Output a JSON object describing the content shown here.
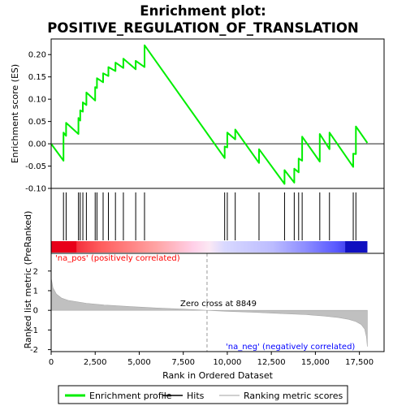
{
  "chart_data": {
    "type": "line",
    "title": "Enrichment plot:\nPOSITIVE_REGULATION_OF_TRANSLATION",
    "enrichment": {
      "ylabel": "Enrichment score (ES)",
      "ylim": [
        -0.1,
        0.235
      ],
      "yticks": [
        -0.1,
        -0.05,
        0.0,
        0.05,
        0.1,
        0.15,
        0.2
      ],
      "ytick_labels": [
        "-0.10",
        "-0.05",
        "0.00",
        "0.05",
        "0.10",
        "0.15",
        "0.20"
      ],
      "series": [
        {
          "name": "Enrichment profile",
          "color": "#00ee00",
          "x": [
            0,
            700,
            700,
            850,
            850,
            1550,
            1550,
            1650,
            1650,
            1800,
            1800,
            2000,
            2000,
            2500,
            2500,
            2600,
            2600,
            2950,
            2950,
            3250,
            3250,
            3650,
            3650,
            4100,
            4100,
            4800,
            4800,
            5300,
            5300,
            9850,
            9850,
            10000,
            10000,
            10450,
            10450,
            11800,
            11800,
            13250,
            13250,
            13800,
            13800,
            14050,
            14050,
            14250,
            14250,
            15250,
            15250,
            15800,
            15800,
            17150,
            17150,
            17300,
            17300,
            17950
          ],
          "y": [
            0.0,
            -0.038,
            0.025,
            0.018,
            0.047,
            0.022,
            0.058,
            0.052,
            0.075,
            0.072,
            0.093,
            0.087,
            0.115,
            0.097,
            0.127,
            0.125,
            0.147,
            0.138,
            0.158,
            0.152,
            0.172,
            0.163,
            0.182,
            0.17,
            0.191,
            0.167,
            0.186,
            0.172,
            0.221,
            -0.032,
            -0.006,
            -0.008,
            0.025,
            0.01,
            0.032,
            -0.043,
            -0.012,
            -0.09,
            -0.059,
            -0.087,
            -0.056,
            -0.064,
            -0.033,
            -0.038,
            0.016,
            -0.04,
            0.022,
            -0.012,
            0.025,
            -0.052,
            -0.022,
            -0.023,
            0.039,
            0.002
          ]
        }
      ]
    },
    "hits": [
      700,
      850,
      1550,
      1650,
      1800,
      2000,
      2500,
      2600,
      2950,
      3250,
      3650,
      4100,
      4800,
      5300,
      9850,
      10000,
      10450,
      11800,
      13250,
      13800,
      14050,
      14250,
      15250,
      15800,
      17150,
      17300
    ],
    "ranked_metric": {
      "ylabel": "Ranked list metric (PreRanked)",
      "ylim": [
        -2.1,
        2.9
      ],
      "yticks": [
        -2,
        -1,
        0,
        1,
        2
      ],
      "ytick_labels": [
        "-2",
        "-1",
        "0",
        "1",
        "2"
      ],
      "x": [
        0,
        100,
        300,
        600,
        1000,
        2000,
        3000,
        4500,
        6000,
        7500,
        8849,
        10000,
        11500,
        13000,
        14500,
        15500,
        16300,
        16900,
        17300,
        17600,
        17800,
        17900,
        17950
      ],
      "y": [
        1.65,
        1.15,
        0.82,
        0.62,
        0.5,
        0.36,
        0.27,
        0.19,
        0.12,
        0.06,
        0.0,
        -0.05,
        -0.1,
        -0.16,
        -0.22,
        -0.29,
        -0.37,
        -0.46,
        -0.57,
        -0.72,
        -0.95,
        -1.35,
        -1.85
      ],
      "color": "#c0c0c0"
    },
    "xaxis": {
      "label": "Rank in Ordered Dataset",
      "xlim": [
        0,
        18900
      ],
      "xticks": [
        0,
        2500,
        5000,
        7500,
        10000,
        12500,
        15000,
        17500
      ],
      "xtick_labels": [
        "0",
        "2,500",
        "5,000",
        "7,500",
        "10,000",
        "12,500",
        "15,000",
        "17,500"
      ],
      "max_rank": 17950
    },
    "zero_cross": 8849,
    "annotations": {
      "zero_cross": "Zero cross at 8849",
      "na_pos": "'na_pos' (positively correlated)",
      "na_neg": "'na_neg' (negatively correlated)"
    },
    "colors": {
      "pos_label": "#ff0000",
      "neg_label": "#0000ff",
      "profile": "#00ee00",
      "hits": "#000000",
      "metric": "#c0c0c0"
    },
    "legend": {
      "position": "bottom",
      "items": [
        {
          "label": "Enrichment profile",
          "color": "#00ee00"
        },
        {
          "label": "Hits",
          "color": "#000000"
        },
        {
          "label": "Ranking metric scores",
          "color": "#c0c0c0"
        }
      ]
    }
  }
}
